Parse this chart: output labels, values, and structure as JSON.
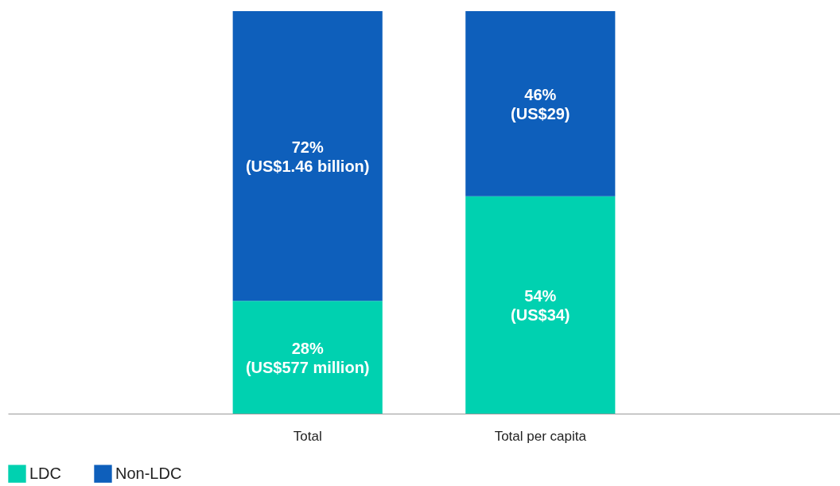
{
  "chart_data": {
    "type": "bar",
    "stacked": true,
    "categories": [
      "Total",
      "Total per capita"
    ],
    "tick_labels": "x",
    "legend": "bottom",
    "series": [
      {
        "name": "LDC",
        "color": "#00d1b0",
        "values": [
          28,
          54
        ],
        "value_labels": [
          "28%\n(US$577 million)",
          "54%\n(US$34)"
        ]
      },
      {
        "name": "Non-LDC",
        "color": "#0e5fbb",
        "values": [
          72,
          46
        ],
        "value_labels": [
          "72%\n(US$1.46 billion)",
          "46%\n(US$29)"
        ]
      }
    ]
  }
}
